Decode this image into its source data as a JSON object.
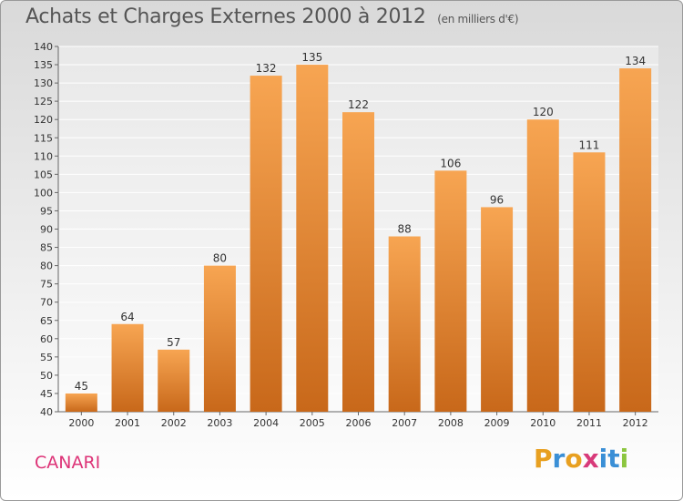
{
  "header": {
    "title": "Achats et Charges Externes 2000 à 2012",
    "unit": "(en milliers d'€)"
  },
  "footer": {
    "commune": "CANARI",
    "brand": [
      "P",
      "r",
      "o",
      "x",
      "i",
      "t",
      "i"
    ]
  },
  "colors": {
    "bar_top": "#f7a552",
    "bar_bottom": "#c8681a",
    "commune": "#dd3377",
    "brand": [
      "#e8a020",
      "#3a8fd6",
      "#e8a020",
      "#d83a7a",
      "#3a8fd6",
      "#3a8fd6",
      "#8cc63f"
    ]
  },
  "chart_data": {
    "type": "bar",
    "categories": [
      "2000",
      "2001",
      "2002",
      "2003",
      "2004",
      "2005",
      "2006",
      "2007",
      "2008",
      "2009",
      "2010",
      "2011",
      "2012"
    ],
    "values": [
      45,
      64,
      57,
      80,
      132,
      135,
      122,
      88,
      106,
      96,
      120,
      111,
      134
    ],
    "ylim": [
      40,
      140
    ],
    "ytick_step": 5,
    "grid": true,
    "legend": "none"
  }
}
